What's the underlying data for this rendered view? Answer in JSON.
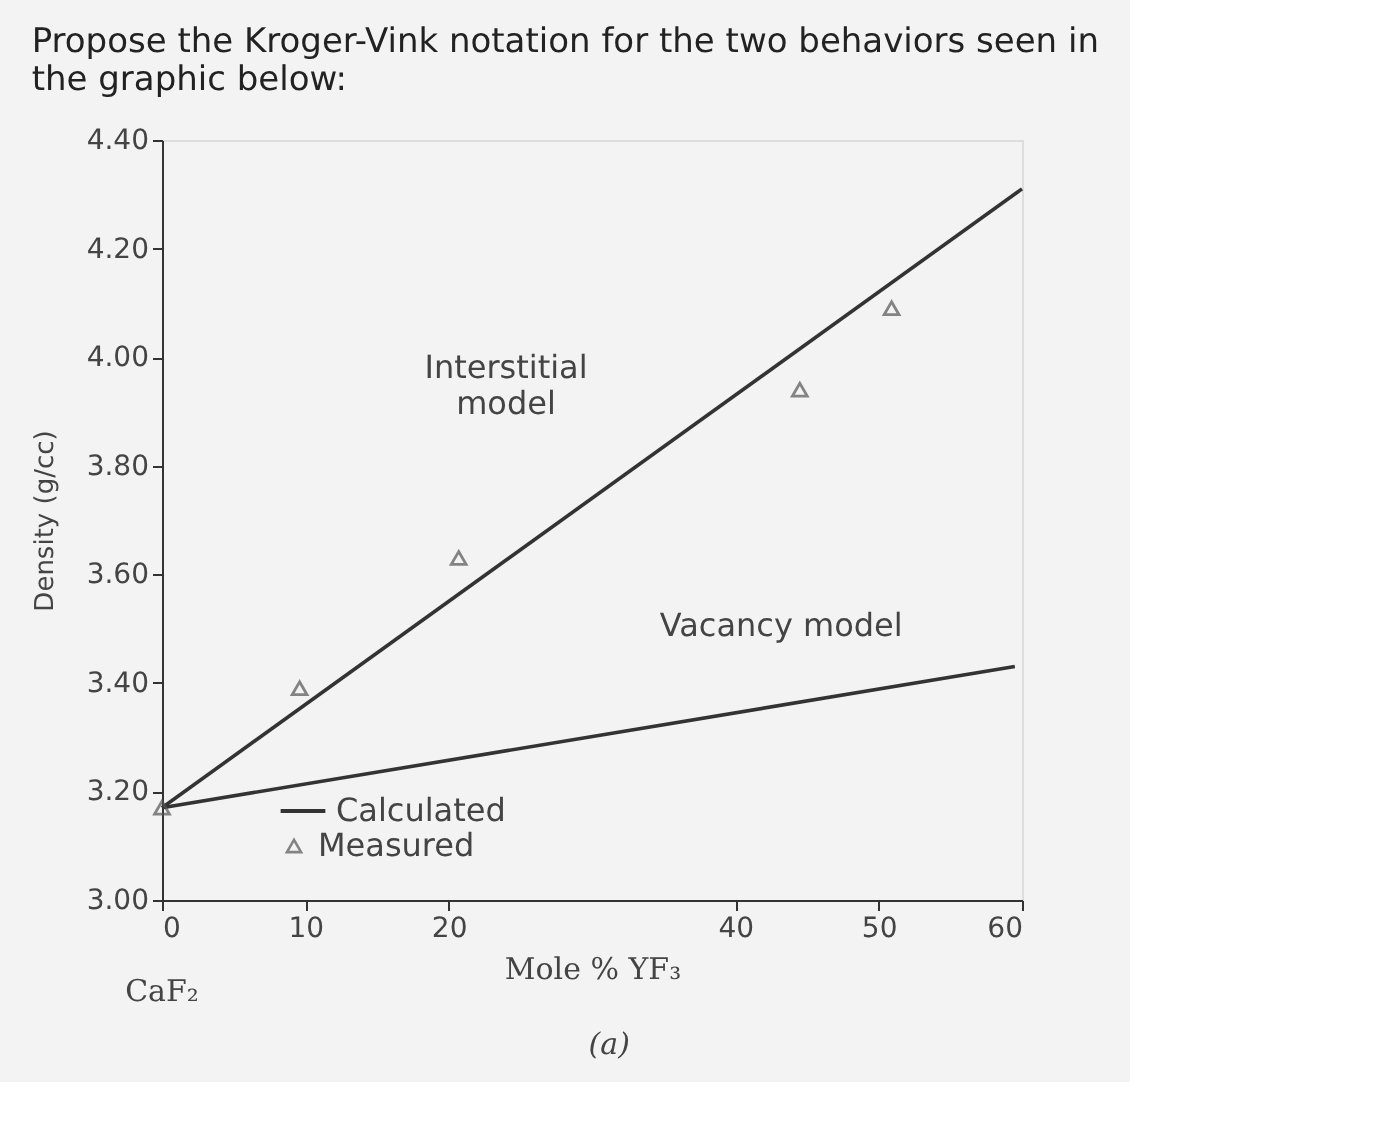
{
  "chart_data": {
    "type": "line",
    "title": "Propose the Kroger-Vink notation for the two behaviors seen in the graphic below:",
    "xlabel": "Mole % YF₃",
    "ylabel": "Density (g/cc)",
    "xlim": [
      0,
      60
    ],
    "xticks": [
      0,
      10,
      20,
      40,
      50,
      60
    ],
    "ylim": [
      3.0,
      4.4
    ],
    "yticks": [
      {
        "value": 3.0,
        "label": "3.00"
      },
      {
        "value": 3.2,
        "label": "3.20"
      },
      {
        "value": 3.4,
        "label": "3.40"
      },
      {
        "value": 3.6,
        "label": "3.60"
      },
      {
        "value": 3.8,
        "label": "3.80"
      },
      {
        "value": 4.0,
        "label": "4.00"
      },
      {
        "value": 4.2,
        "label": "4.20"
      },
      {
        "value": 4.4,
        "label": "4.40"
      }
    ],
    "series": [
      {
        "name": "Calculated",
        "type": "line",
        "color": "#333333",
        "x": [
          0,
          60
        ],
        "values": [
          3.17,
          4.31
        ]
      },
      {
        "type": "line",
        "color": "#333333",
        "x": [
          0,
          59.5
        ],
        "values": [
          3.17,
          3.43
        ]
      },
      {
        "name": "Measured",
        "type": "scatter",
        "marker": "triangle",
        "color": "#555555",
        "x": [
          0,
          9.6,
          20.7,
          44.5,
          50.9
        ],
        "values": [
          3.17,
          3.39,
          3.63,
          3.94,
          4.09
        ]
      }
    ],
    "annotations": [
      "Interstitial\nmodel",
      "Vacancy model",
      "CaF₂",
      "(a)"
    ],
    "grid": false,
    "legend": "bottom",
    "line_style": "solid"
  }
}
